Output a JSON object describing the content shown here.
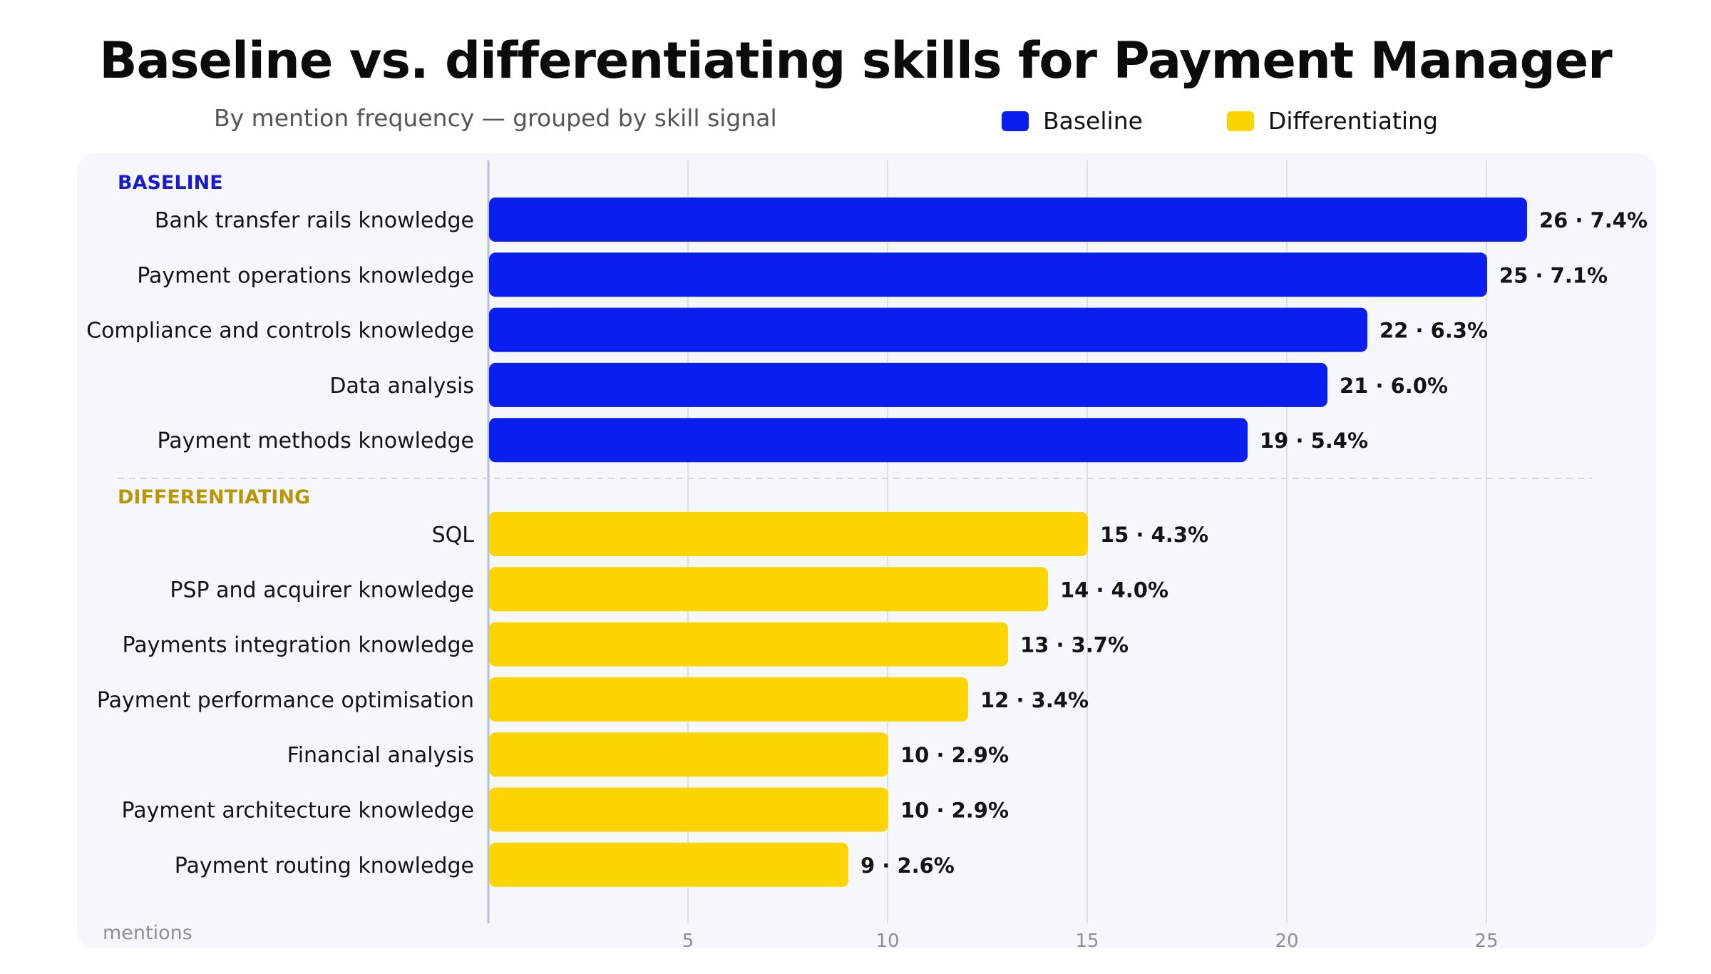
{
  "title": "Baseline vs. differentiating skills for Payment Manager",
  "subtitle": "By mention frequency — grouped by skill signal",
  "legend": {
    "baseline_label": "Baseline",
    "differentiating_label": "Differentiating"
  },
  "colors": {
    "baseline": "#0a1eef",
    "differentiating": "#fcd400",
    "baseline_heading": "#1a1acc",
    "differentiating_heading": "#b8960a",
    "grid": "#dde0e8",
    "axis": "#b7bfd6"
  },
  "chart_data": {
    "type": "bar",
    "orientation": "horizontal",
    "title": "Baseline vs. differentiating skills for Payment Manager",
    "xlabel": "mentions",
    "xlim": [
      0,
      28
    ],
    "xticks": [
      5,
      10,
      15,
      20,
      25
    ],
    "grid": true,
    "legend_position": "top-right",
    "groups": [
      {
        "name": "BASELINE",
        "series": "Baseline",
        "items": [
          {
            "label": "Bank transfer rails knowledge",
            "value": 26,
            "display": "26 · 7.4%"
          },
          {
            "label": "Payment operations knowledge",
            "value": 25,
            "display": "25 · 7.1%"
          },
          {
            "label": "Compliance and controls knowledge",
            "value": 22,
            "display": "22 · 6.3%"
          },
          {
            "label": "Data analysis",
            "value": 21,
            "display": "21 · 6.0%"
          },
          {
            "label": "Payment methods knowledge",
            "value": 19,
            "display": "19 · 5.4%"
          }
        ]
      },
      {
        "name": "DIFFERENTIATING",
        "series": "Differentiating",
        "items": [
          {
            "label": "SQL",
            "value": 15,
            "display": "15 · 4.3%"
          },
          {
            "label": "PSP and acquirer knowledge",
            "value": 14,
            "display": "14 · 4.0%"
          },
          {
            "label": "Payments integration knowledge",
            "value": 13,
            "display": "13 · 3.7%"
          },
          {
            "label": "Payment performance optimisation",
            "value": 12,
            "display": "12 · 3.4%"
          },
          {
            "label": "Financial analysis",
            "value": 10,
            "display": "10 · 2.9%"
          },
          {
            "label": "Payment architecture knowledge",
            "value": 10,
            "display": "10 · 2.9%"
          },
          {
            "label": "Payment routing knowledge",
            "value": 9,
            "display": "9 · 2.6%"
          }
        ]
      }
    ]
  }
}
